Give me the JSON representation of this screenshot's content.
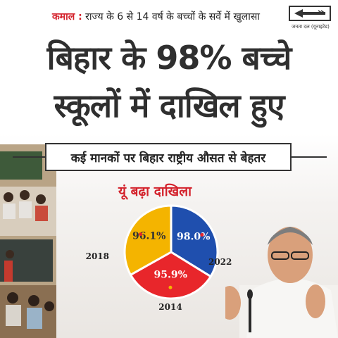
{
  "top_line": {
    "highlight": "कमाल :",
    "text": "राज्य के 6 से 14 वर्ष के बच्चों के सर्वे में खुलासा"
  },
  "logo": {
    "caption": "जनता दल (यूनाइटेड)"
  },
  "headline": {
    "line1": "बिहार के 98% बच्चे",
    "line2": "स्कूलों में दाखिल हुए"
  },
  "subheadline": "कई मानकों पर बिहार राष्ट्रीय औसत से बेहतर",
  "chart_title": "यूं बढ़ा दाखिला",
  "chart_data": {
    "type": "pie",
    "title": "यूं बढ़ा दाखिला",
    "slices": [
      {
        "year": "2022",
        "value": 98.0,
        "label": "98.0%",
        "color": "#1f4fae"
      },
      {
        "year": "2014",
        "value": 95.9,
        "label": "95.9%",
        "color": "#e8262b"
      },
      {
        "year": "2018",
        "value": 96.1,
        "label": "96.1%",
        "color": "#f4b400"
      }
    ]
  },
  "colors": {
    "accent_red": "#d3202a",
    "headline": "#2f2f2f"
  }
}
